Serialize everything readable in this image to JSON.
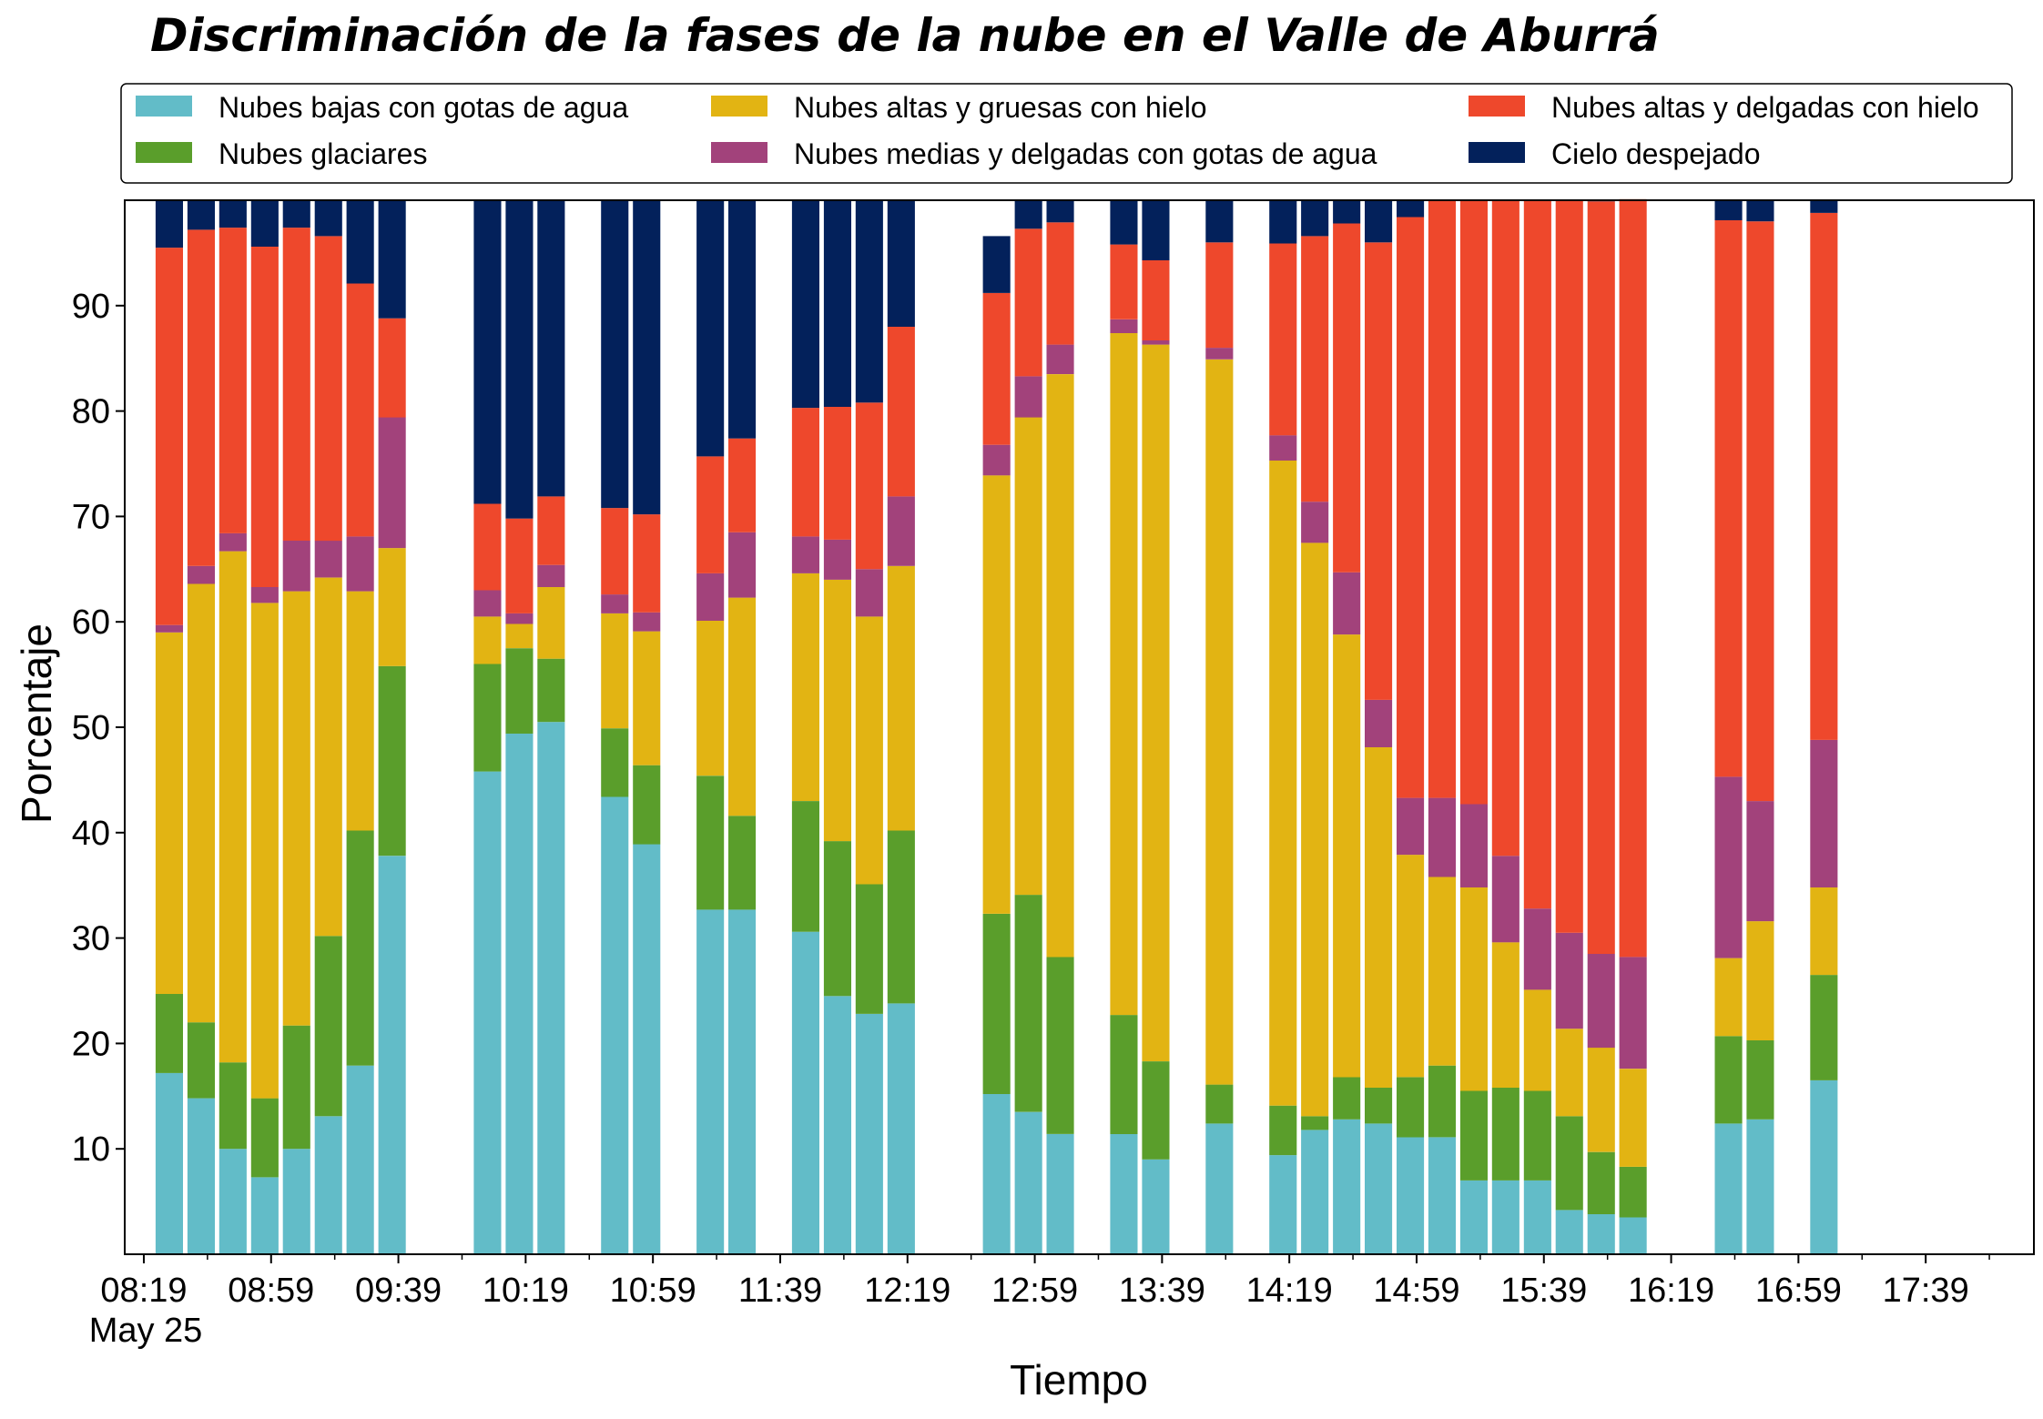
{
  "chart_data": {
    "type": "bar",
    "stacked": true,
    "title": "Discriminación de la fases de la nube en el Valle de Aburrá",
    "xlabel": "Tiempo",
    "ylabel": "Porcentaje",
    "date_label": "May 25",
    "ylim": [
      0,
      100
    ],
    "yticks": [
      10,
      20,
      30,
      40,
      50,
      60,
      70,
      80,
      90
    ],
    "xlim": [
      "08:13",
      "18:13"
    ],
    "xticks": [
      "08:19",
      "08:59",
      "09:39",
      "10:19",
      "10:59",
      "11:39",
      "12:19",
      "12:59",
      "13:39",
      "14:19",
      "14:59",
      "15:39",
      "16:19",
      "16:59",
      "17:39"
    ],
    "legend_position": "top",
    "x": [
      "08:27",
      "08:37",
      "08:47",
      "08:57",
      "09:07",
      "09:17",
      "09:27",
      "09:37",
      "10:07",
      "10:17",
      "10:27",
      "10:47",
      "10:57",
      "11:17",
      "11:27",
      "11:47",
      "11:57",
      "12:07",
      "12:17",
      "12:47",
      "12:57",
      "13:07",
      "13:27",
      "13:37",
      "13:57",
      "14:17",
      "14:27",
      "14:37",
      "14:47",
      "14:57",
      "15:07",
      "15:17",
      "15:27",
      "15:37",
      "15:47",
      "15:57",
      "16:07",
      "16:37",
      "16:47",
      "17:07"
    ],
    "series": [
      {
        "name": "Nubes bajas con gotas de agua",
        "color": "#62bcc8",
        "values": [
          17.2,
          14.8,
          10.0,
          7.3,
          10.0,
          13.1,
          17.9,
          37.8,
          45.8,
          49.4,
          50.5,
          43.4,
          38.9,
          32.7,
          32.7,
          30.6,
          24.5,
          22.8,
          23.8,
          15.2,
          13.5,
          11.4,
          11.4,
          9.0,
          12.4,
          9.4,
          11.8,
          12.8,
          12.4,
          11.1,
          11.1,
          7.0,
          7.0,
          7.0,
          4.2,
          3.8,
          3.5,
          12.4,
          12.8,
          16.5
        ]
      },
      {
        "name": "Nubes glaciares",
        "color": "#5a9e2b",
        "values": [
          7.5,
          7.2,
          8.2,
          7.5,
          11.7,
          17.1,
          22.3,
          18.0,
          10.2,
          8.1,
          6.0,
          6.5,
          7.5,
          12.7,
          8.9,
          12.4,
          14.7,
          12.3,
          16.4,
          17.1,
          20.6,
          16.8,
          11.3,
          9.3,
          3.7,
          4.7,
          1.3,
          4.0,
          3.4,
          5.7,
          6.8,
          8.5,
          8.8,
          8.5,
          8.9,
          5.9,
          4.8,
          8.3,
          7.5,
          10.0
        ]
      },
      {
        "name": "Nubes altas y gruesas con hielo",
        "color": "#e2b413",
        "values": [
          34.3,
          41.6,
          48.5,
          47.0,
          41.2,
          34.0,
          22.7,
          11.2,
          4.5,
          2.3,
          6.8,
          10.9,
          12.7,
          14.7,
          20.7,
          21.6,
          24.8,
          25.4,
          25.1,
          41.6,
          45.3,
          55.3,
          64.7,
          68.0,
          68.8,
          61.2,
          54.4,
          42.0,
          32.3,
          21.1,
          17.9,
          19.3,
          13.8,
          9.6,
          8.3,
          9.9,
          9.3,
          7.4,
          11.3,
          8.3
        ]
      },
      {
        "name": "Nubes medias y delgadas con gotas de agua",
        "color": "#a2427b",
        "values": [
          0.7,
          1.7,
          1.7,
          1.5,
          4.8,
          3.5,
          5.2,
          12.4,
          2.5,
          1.0,
          2.1,
          1.8,
          1.8,
          4.5,
          6.2,
          3.5,
          3.8,
          4.5,
          6.6,
          2.9,
          3.9,
          2.8,
          1.3,
          0.4,
          1.1,
          2.4,
          3.9,
          5.9,
          4.5,
          5.4,
          7.5,
          7.9,
          8.2,
          7.7,
          9.1,
          8.9,
          10.6,
          17.2,
          11.4,
          14.0
        ]
      },
      {
        "name": "Nubes altas y delgadas con hielo",
        "color": "#ee482c",
        "values": [
          35.8,
          31.9,
          29.0,
          32.3,
          29.7,
          28.9,
          24.0,
          9.4,
          8.2,
          9.0,
          6.5,
          8.2,
          9.3,
          11.1,
          8.9,
          12.2,
          12.6,
          15.8,
          16.1,
          14.4,
          14.0,
          11.6,
          7.1,
          7.6,
          10.0,
          18.2,
          25.2,
          33.1,
          43.4,
          55.1,
          56.7,
          57.3,
          62.2,
          67.2,
          69.5,
          71.4,
          71.9,
          52.8,
          55.0,
          50.0
        ]
      },
      {
        "name": "Cielo despejado",
        "color": "#03215b",
        "values": [
          4.5,
          2.8,
          2.6,
          4.4,
          2.6,
          3.4,
          7.9,
          11.2,
          28.8,
          30.2,
          28.1,
          29.2,
          29.8,
          24.3,
          22.6,
          19.7,
          19.6,
          19.2,
          12.0,
          5.4,
          2.7,
          2.1,
          4.2,
          5.7,
          4.0,
          4.1,
          3.4,
          2.2,
          4.0,
          1.6,
          0.0,
          0.0,
          0.0,
          0.0,
          0.0,
          0.1,
          0.0,
          1.9,
          2.0,
          1.2
        ]
      }
    ]
  }
}
